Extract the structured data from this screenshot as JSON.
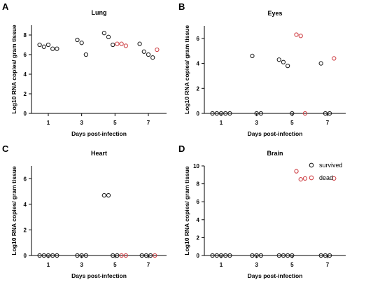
{
  "legend": [
    {
      "label": "survived",
      "color": "#222222"
    },
    {
      "label": "dead",
      "color": "#d0464b"
    }
  ],
  "chart_data": [
    {
      "type": "scatter",
      "panel": "A",
      "title": "Lung",
      "xlabel": "Days post-infection",
      "ylabel": "Log10 RNA copies/ gram tissue",
      "categories": [
        "1",
        "3",
        "5",
        "7"
      ],
      "ylim": [
        0,
        9
      ],
      "yticks": [
        0,
        2,
        4,
        6,
        8
      ],
      "series": [
        {
          "name": "survived",
          "color": "#222222",
          "points": [
            {
              "x": "1",
              "y": 7.0
            },
            {
              "x": "1",
              "y": 6.8
            },
            {
              "x": "1",
              "y": 7.0
            },
            {
              "x": "1",
              "y": 6.6
            },
            {
              "x": "1",
              "y": 6.6
            },
            {
              "x": "3",
              "y": 7.5
            },
            {
              "x": "3",
              "y": 7.2
            },
            {
              "x": "3",
              "y": 6.0
            },
            {
              "x": "5",
              "y": 8.2
            },
            {
              "x": "5",
              "y": 7.8
            },
            {
              "x": "5",
              "y": 7.0
            },
            {
              "x": "7",
              "y": 7.1
            },
            {
              "x": "7",
              "y": 6.3
            },
            {
              "x": "7",
              "y": 6.0
            },
            {
              "x": "7",
              "y": 5.7
            }
          ]
        },
        {
          "name": "dead",
          "color": "#d0464b",
          "points": [
            {
              "x": "5",
              "y": 7.1
            },
            {
              "x": "5",
              "y": 7.1
            },
            {
              "x": "5",
              "y": 6.9
            },
            {
              "x": "7",
              "y": 6.5
            }
          ]
        }
      ]
    },
    {
      "type": "scatter",
      "panel": "B",
      "title": "Eyes",
      "xlabel": "Days post-infection",
      "ylabel": "Log10 RNA copies/ gram tissue",
      "categories": [
        "1",
        "3",
        "5",
        "7"
      ],
      "ylim": [
        0,
        7
      ],
      "yticks": [
        0,
        2,
        4,
        6
      ],
      "series": [
        {
          "name": "survived",
          "color": "#222222",
          "points": [
            {
              "x": "1",
              "y": 0
            },
            {
              "x": "1",
              "y": 0
            },
            {
              "x": "1",
              "y": 0
            },
            {
              "x": "1",
              "y": 0
            },
            {
              "x": "1",
              "y": 0
            },
            {
              "x": "3",
              "y": 4.6
            },
            {
              "x": "3",
              "y": 0
            },
            {
              "x": "3",
              "y": 0
            },
            {
              "x": "5",
              "y": 4.3
            },
            {
              "x": "5",
              "y": 4.1
            },
            {
              "x": "5",
              "y": 3.8
            },
            {
              "x": "5",
              "y": 0
            },
            {
              "x": "7",
              "y": 4.0
            },
            {
              "x": "7",
              "y": 0
            },
            {
              "x": "7",
              "y": 0
            }
          ]
        },
        {
          "name": "dead",
          "color": "#d0464b",
          "points": [
            {
              "x": "5",
              "y": 6.3
            },
            {
              "x": "5",
              "y": 6.2
            },
            {
              "x": "5",
              "y": 0
            },
            {
              "x": "7",
              "y": 4.4
            }
          ]
        }
      ]
    },
    {
      "type": "scatter",
      "panel": "C",
      "title": "Heart",
      "xlabel": "Days post-infection",
      "ylabel": "Log10 RNA copies/ gram tissue",
      "categories": [
        "1",
        "3",
        "5",
        "7"
      ],
      "ylim": [
        0,
        7
      ],
      "yticks": [
        0,
        2,
        4,
        6
      ],
      "series": [
        {
          "name": "survived",
          "color": "#222222",
          "points": [
            {
              "x": "1",
              "y": 0
            },
            {
              "x": "1",
              "y": 0
            },
            {
              "x": "1",
              "y": 0
            },
            {
              "x": "1",
              "y": 0
            },
            {
              "x": "1",
              "y": 0
            },
            {
              "x": "3",
              "y": 0
            },
            {
              "x": "3",
              "y": 0
            },
            {
              "x": "3",
              "y": 0
            },
            {
              "x": "5",
              "y": 4.7
            },
            {
              "x": "5",
              "y": 4.7
            },
            {
              "x": "5",
              "y": 0
            },
            {
              "x": "5",
              "y": 0
            },
            {
              "x": "7",
              "y": 0
            },
            {
              "x": "7",
              "y": 0
            },
            {
              "x": "7",
              "y": 0
            }
          ]
        },
        {
          "name": "dead",
          "color": "#d0464b",
          "points": [
            {
              "x": "5",
              "y": 0
            },
            {
              "x": "5",
              "y": 0
            },
            {
              "x": "7",
              "y": 0
            }
          ]
        }
      ]
    },
    {
      "type": "scatter",
      "panel": "D",
      "title": "Brain",
      "xlabel": "Days post-infection",
      "ylabel": "Log10 RNA copies/ gram tissue",
      "categories": [
        "1",
        "3",
        "5",
        "7"
      ],
      "ylim": [
        0,
        10
      ],
      "yticks": [
        0,
        2,
        4,
        6,
        8,
        10
      ],
      "series": [
        {
          "name": "survived",
          "color": "#222222",
          "points": [
            {
              "x": "1",
              "y": 0
            },
            {
              "x": "1",
              "y": 0
            },
            {
              "x": "1",
              "y": 0
            },
            {
              "x": "1",
              "y": 0
            },
            {
              "x": "1",
              "y": 0
            },
            {
              "x": "3",
              "y": 0
            },
            {
              "x": "3",
              "y": 0
            },
            {
              "x": "3",
              "y": 0
            },
            {
              "x": "5",
              "y": 0
            },
            {
              "x": "5",
              "y": 0
            },
            {
              "x": "5",
              "y": 0
            },
            {
              "x": "5",
              "y": 0
            },
            {
              "x": "7",
              "y": 0
            },
            {
              "x": "7",
              "y": 0
            },
            {
              "x": "7",
              "y": 0
            }
          ]
        },
        {
          "name": "dead",
          "color": "#d0464b",
          "points": [
            {
              "x": "5",
              "y": 9.4
            },
            {
              "x": "5",
              "y": 8.5
            },
            {
              "x": "5",
              "y": 8.6
            },
            {
              "x": "7",
              "y": 8.6
            }
          ]
        }
      ]
    }
  ]
}
